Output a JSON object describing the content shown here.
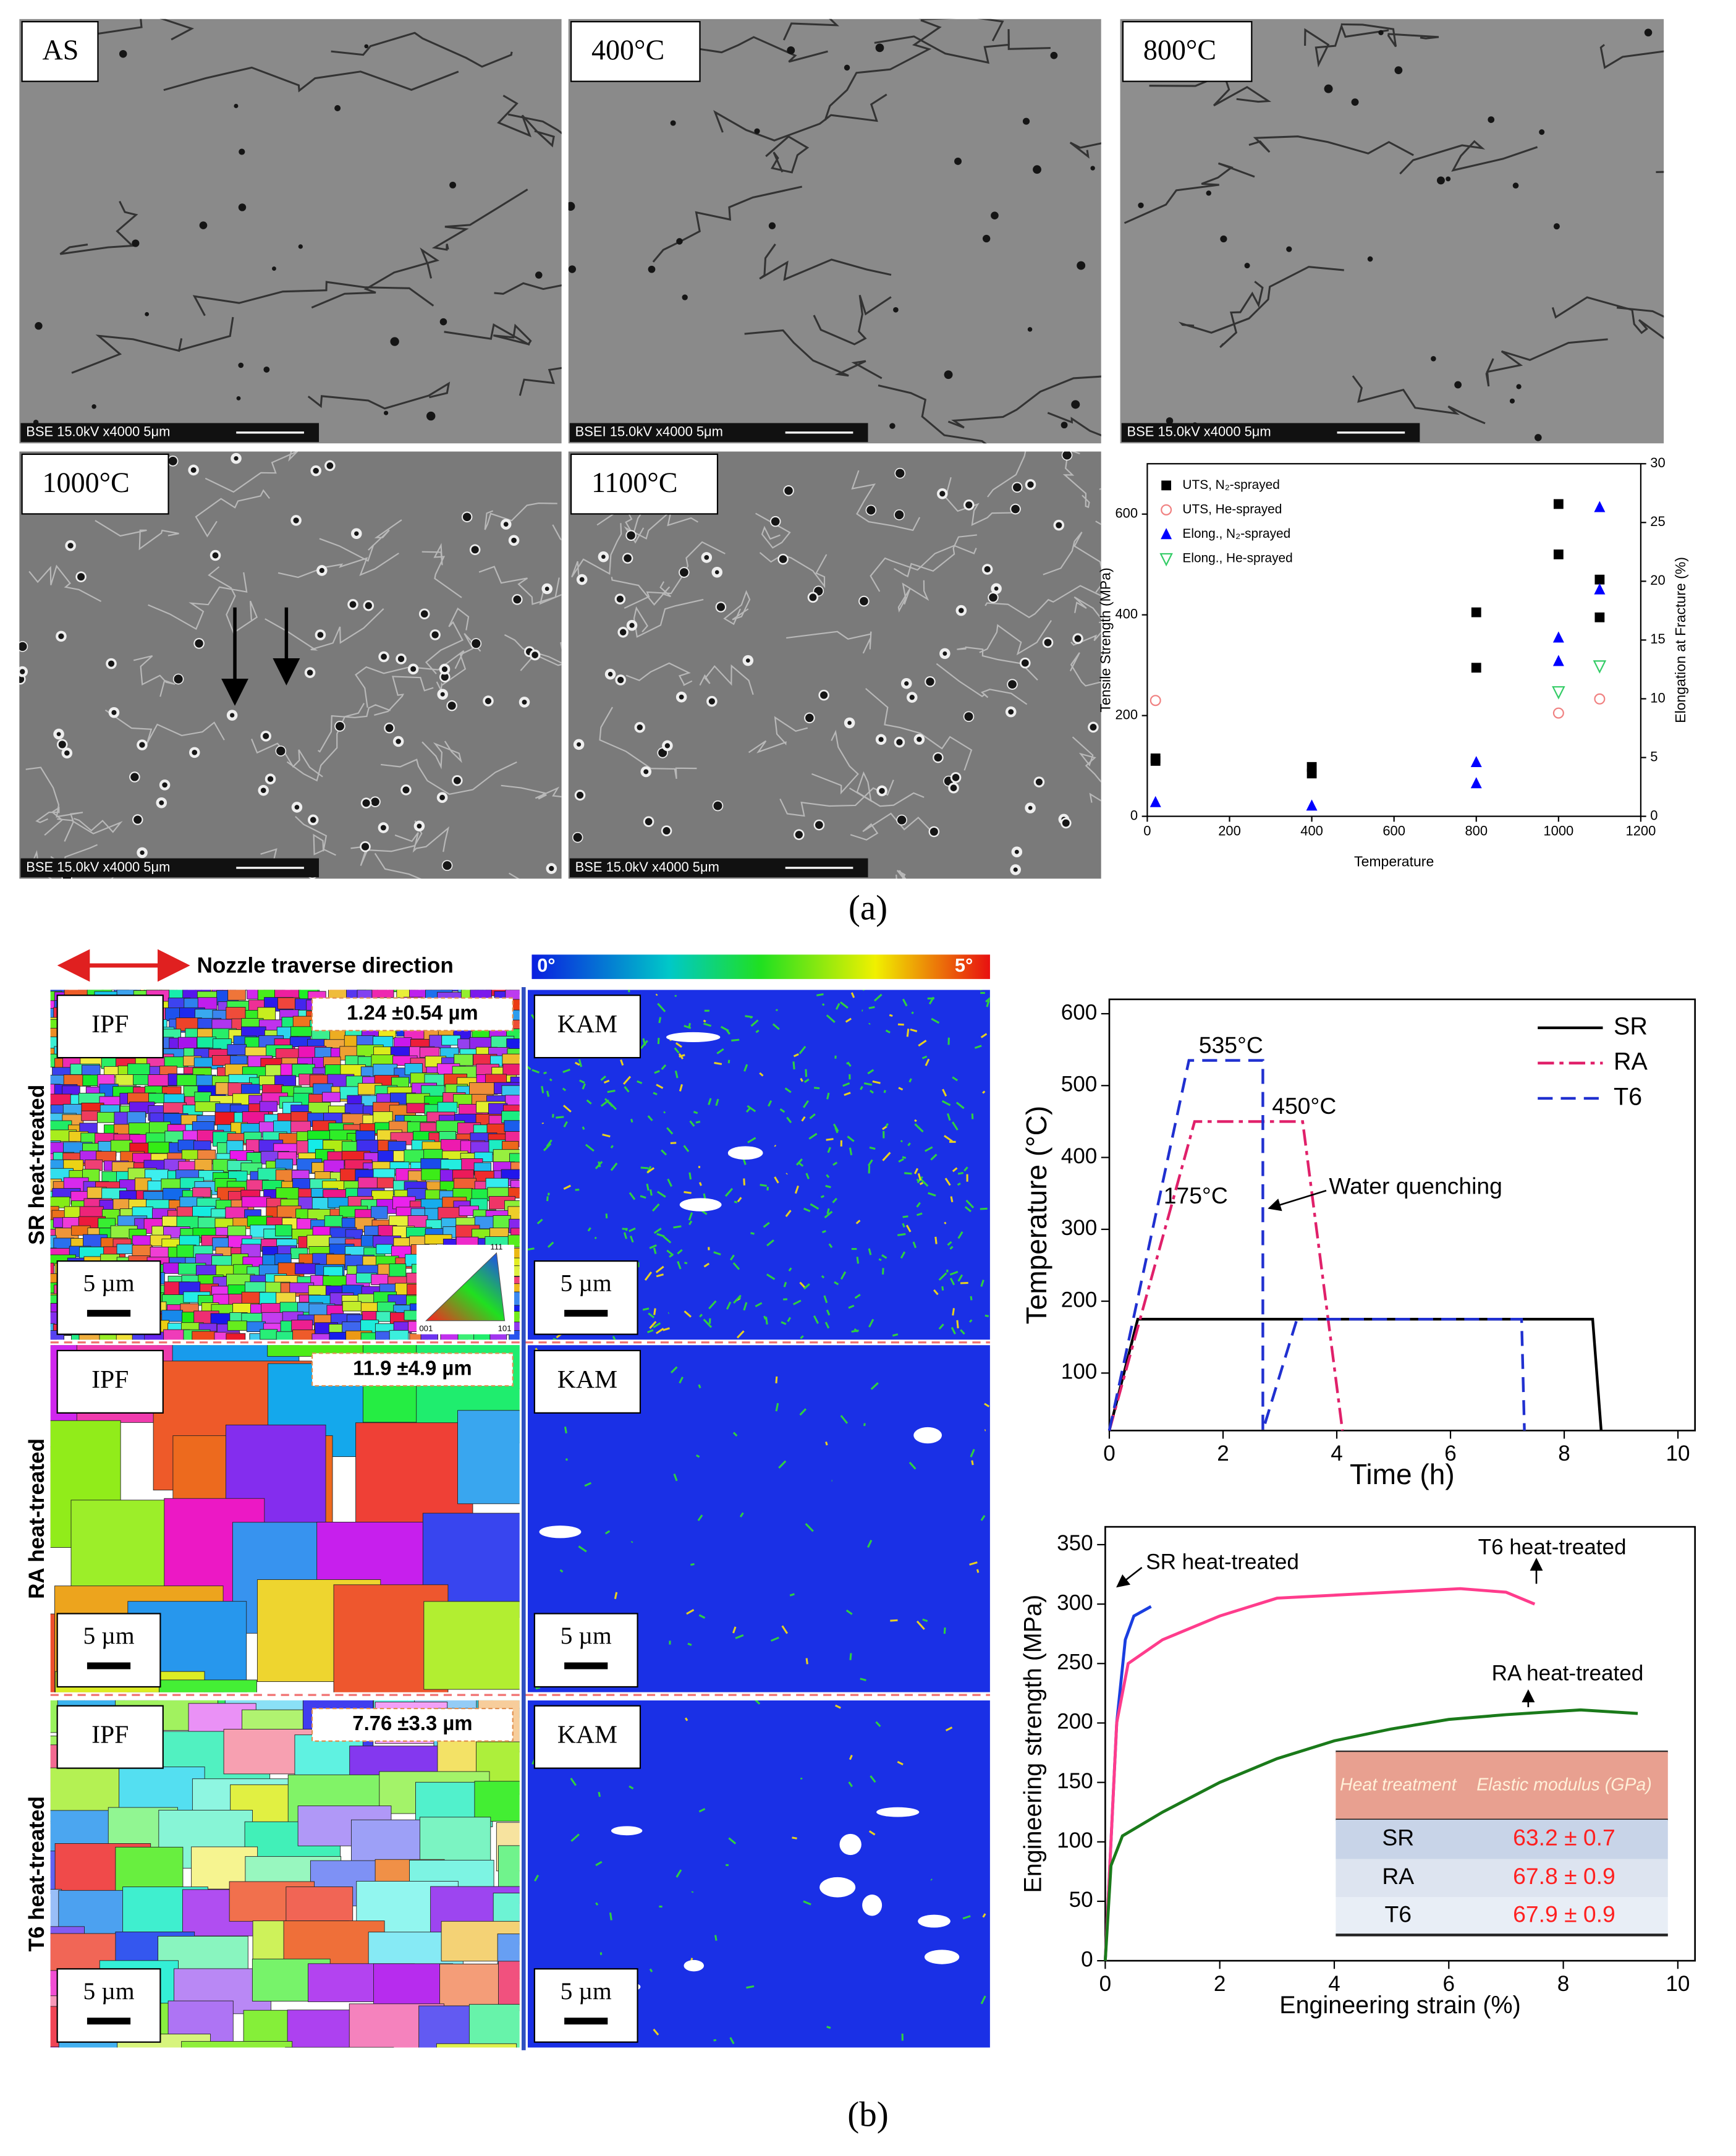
{
  "panel_a": {
    "label": "(a)",
    "micrographs": [
      {
        "label": "AS",
        "caption": "BSE 15.0kV x4000 5μm"
      },
      {
        "label": "400°C",
        "caption": "BSEI 15.0kV x4000 5μm"
      },
      {
        "label": "800°C",
        "caption": "BSE 15.0kV x4000 5μm"
      },
      {
        "label": "1000°C",
        "caption": "BSE 15.0kV x4000 5μm"
      },
      {
        "label": "1100°C",
        "caption": "BSE 15.0kV x4000 5μm"
      }
    ]
  },
  "panel_b": {
    "label": "(b)",
    "direction": "Nozzle traverse direction",
    "kam_scale": [
      "0°",
      "5°"
    ],
    "ipf_key": [
      "111",
      "001",
      "101"
    ],
    "rows": [
      {
        "name": "SR heat-treated",
        "ipf": "IPF",
        "grain_size": "1.24 ±0.54 µm",
        "ipf_scale_bar": "5 µm",
        "kam": "KAM",
        "kam_scale_bar": "5 µm"
      },
      {
        "name": "RA heat-treated",
        "ipf": "IPF",
        "grain_size": "11.9 ±4.9 µm",
        "ipf_scale_bar": "5 µm",
        "kam": "KAM",
        "kam_scale_bar": "5 µm"
      },
      {
        "name": "T6 heat-treated",
        "ipf": "IPF",
        "grain_size": "7.76 ±3.3 µm",
        "ipf_scale_bar": "5 µm",
        "kam": "KAM",
        "kam_scale_bar": "5 µm"
      }
    ]
  },
  "chart_data": [
    {
      "type": "scatter",
      "x_label": "Temperature",
      "y_label": "Tensile Strength (MPa)",
      "y2_label": "Elongation at Fracture (%)",
      "xlim": [
        0,
        1200
      ],
      "xticks": [
        0,
        200,
        400,
        600,
        800,
        1000,
        1200
      ],
      "ylim": [
        0,
        700
      ],
      "yticks": [
        0,
        200,
        400,
        600
      ],
      "y2lim": [
        0,
        30
      ],
      "y2ticks": [
        0,
        5,
        10,
        15,
        20,
        25,
        30
      ],
      "legend": "upper left",
      "series": [
        {
          "name": "UTS, N₂-sprayed",
          "color": "#000000",
          "marker": "square",
          "x": [
            20,
            20,
            400,
            400,
            800,
            800,
            1000,
            1000,
            1100,
            1100
          ],
          "values": [
            110,
            115,
            98,
            85,
            405,
            295,
            620,
            520,
            470,
            395
          ]
        },
        {
          "name": "UTS, He-sprayed",
          "color": "#f08080",
          "marker": "circle-open",
          "x": [
            20,
            1000,
            1100
          ],
          "values": [
            230,
            205,
            233
          ]
        },
        {
          "name": "Elong., N₂-sprayed",
          "color": "#0000ff",
          "marker": "triangle",
          "axis": "y2",
          "x": [
            20,
            400,
            800,
            800,
            1000,
            1000,
            1100,
            1100
          ],
          "values": [
            1.2,
            0.9,
            4.6,
            2.8,
            15.2,
            13.2,
            26.3,
            19.3
          ]
        },
        {
          "name": "Elong., He-sprayed",
          "color": "#33cc66",
          "marker": "triangle-down-open",
          "axis": "y2",
          "x": [
            1000,
            1100
          ],
          "values": [
            10.6,
            12.8
          ]
        }
      ]
    },
    {
      "type": "line",
      "x_label": "Time (h)",
      "y_label": "Temperature (°C)",
      "xlim": [
        0,
        10.3
      ],
      "xticks": [
        0,
        2,
        4,
        6,
        8,
        10
      ],
      "ylim": [
        20,
        620
      ],
      "yticks": [
        100,
        200,
        300,
        400,
        500,
        600
      ],
      "legend": "upper right",
      "annotations": [
        "535°C",
        "450°C",
        "175°C",
        "Water quenching"
      ],
      "series": [
        {
          "name": "SR",
          "color": "#000000",
          "dash": "solid",
          "x": [
            0,
            0.5,
            8.5,
            8.65
          ],
          "values": [
            20,
            175,
            175,
            20
          ]
        },
        {
          "name": "RA",
          "color": "#e0206a",
          "dash": "dashdot",
          "x": [
            0,
            1.5,
            3.4,
            4.1
          ],
          "values": [
            20,
            450,
            450,
            20
          ]
        },
        {
          "name": "T6",
          "color": "#2030d0",
          "dash": "dash",
          "x": [
            0,
            1.4,
            2.7,
            2.7,
            3.3,
            7.25,
            7.3
          ],
          "values": [
            20,
            535,
            535,
            20,
            175,
            175,
            20
          ]
        }
      ]
    },
    {
      "type": "line",
      "x_label": "Engineering strain (%)",
      "y_label": "Engineering strength (MPa)",
      "xlim": [
        0,
        10.3
      ],
      "xticks": [
        0,
        2,
        4,
        6,
        8,
        10
      ],
      "ylim": [
        0,
        365
      ],
      "yticks": [
        0,
        50,
        100,
        150,
        200,
        250,
        300,
        350
      ],
      "annotations": [
        "SR heat-treated",
        "T6 heat-treated",
        "RA heat-treated"
      ],
      "series": [
        {
          "color": "#1a3ee0",
          "dash": "solid",
          "x": [
            0,
            0.2,
            0.35,
            0.5,
            0.8
          ],
          "values": [
            0,
            200,
            270,
            290,
            298
          ]
        },
        {
          "color": "#ff3c8c",
          "dash": "solid",
          "x": [
            0,
            0.2,
            0.4,
            1,
            2,
            3,
            5,
            6.2,
            7,
            7.5
          ],
          "values": [
            0,
            200,
            250,
            270,
            290,
            305,
            310,
            313,
            310,
            300
          ]
        },
        {
          "color": "#1a7a1a",
          "dash": "solid",
          "x": [
            0,
            0.1,
            0.3,
            1,
            2,
            3,
            4,
            5,
            6,
            7,
            8.3,
            9.3
          ],
          "values": [
            0,
            80,
            105,
            125,
            150,
            170,
            185,
            195,
            203,
            207,
            211,
            208
          ]
        }
      ],
      "table": {
        "header": [
          "Heat treatment",
          "Elastic modulus (GPa)"
        ],
        "rows": [
          [
            "SR",
            "63.2 ± 0.7"
          ],
          [
            "RA",
            "67.8 ± 0.9"
          ],
          [
            "T6",
            "67.9 ± 0.9"
          ]
        ]
      }
    }
  ]
}
